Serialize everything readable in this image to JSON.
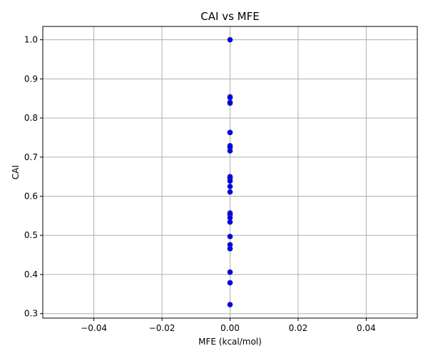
{
  "chart_data": {
    "type": "scatter",
    "title": "CAI vs MFE",
    "xlabel": "MFE (kcal/mol)",
    "ylabel": "CAI",
    "xlim": [
      -0.055,
      0.055
    ],
    "ylim": [
      0.2885,
      1.034
    ],
    "xticks": [
      -0.04,
      -0.02,
      0.0,
      0.02,
      0.04
    ],
    "xtick_labels": [
      "−0.04",
      "−0.02",
      "0.00",
      "0.02",
      "0.04"
    ],
    "yticks": [
      0.3,
      0.4,
      0.5,
      0.6,
      0.7,
      0.8,
      0.9,
      1.0
    ],
    "ytick_labels": [
      "0.3",
      "0.4",
      "0.5",
      "0.6",
      "0.7",
      "0.8",
      "0.9",
      "1.0"
    ],
    "grid": true,
    "legend": "none",
    "marker_color": "#0000ee",
    "marker_edge_color": "#3a3a8c",
    "points": [
      {
        "x": 0.0,
        "y": 1.0
      },
      {
        "x": 0.0,
        "y": 0.854
      },
      {
        "x": 0.0,
        "y": 0.852
      },
      {
        "x": 0.0,
        "y": 0.84
      },
      {
        "x": 0.0,
        "y": 0.838
      },
      {
        "x": 0.0,
        "y": 0.763
      },
      {
        "x": 0.0,
        "y": 0.729
      },
      {
        "x": 0.0,
        "y": 0.725
      },
      {
        "x": 0.0,
        "y": 0.716
      },
      {
        "x": 0.0,
        "y": 0.65
      },
      {
        "x": 0.0,
        "y": 0.646
      },
      {
        "x": 0.0,
        "y": 0.639
      },
      {
        "x": 0.0,
        "y": 0.625
      },
      {
        "x": 0.0,
        "y": 0.611
      },
      {
        "x": 0.0,
        "y": 0.557
      },
      {
        "x": 0.0,
        "y": 0.553
      },
      {
        "x": 0.0,
        "y": 0.545
      },
      {
        "x": 0.0,
        "y": 0.534
      },
      {
        "x": 0.0,
        "y": 0.497
      },
      {
        "x": 0.0,
        "y": 0.476
      },
      {
        "x": 0.0,
        "y": 0.466
      },
      {
        "x": 0.0,
        "y": 0.406
      },
      {
        "x": 0.0,
        "y": 0.379
      },
      {
        "x": 0.0,
        "y": 0.323
      }
    ]
  }
}
